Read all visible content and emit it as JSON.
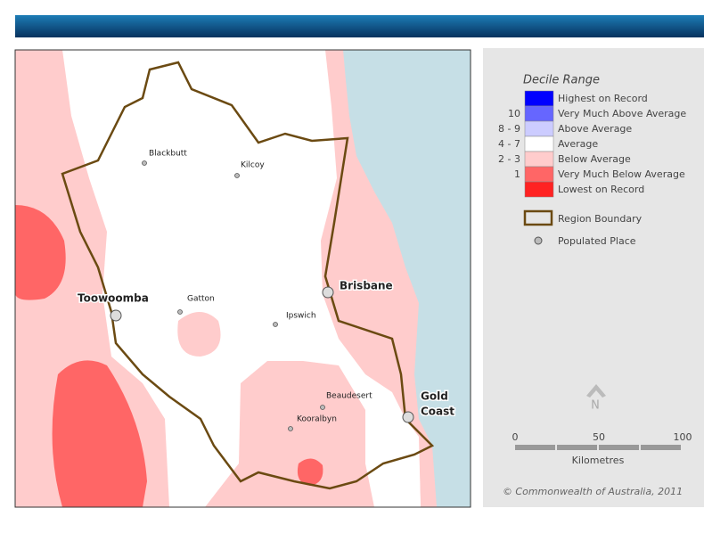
{
  "map": {
    "places": [
      {
        "name": "Blackbutt"
      },
      {
        "name": "Kilcoy"
      },
      {
        "name": "Gatton"
      },
      {
        "name": "Ipswich"
      },
      {
        "name": "Beaudesert"
      },
      {
        "name": "Kooralbyn"
      }
    ],
    "major_places": [
      {
        "lines": [
          "Toowoomba"
        ]
      },
      {
        "lines": [
          "Brisbane"
        ]
      },
      {
        "lines": [
          "Gold",
          "Coast"
        ]
      }
    ]
  },
  "legend": {
    "title": "Decile Range",
    "items": [
      {
        "label": "Highest on Record",
        "color": "#0000ff"
      },
      {
        "range": "10",
        "label": "Very Much Above Average",
        "color": "#6666ff"
      },
      {
        "range": "8 - 9",
        "label": "Above Average",
        "color": "#ccccff"
      },
      {
        "range": "4 - 7",
        "label": "Average",
        "color": "#ffffff"
      },
      {
        "range": "2 - 3",
        "label": "Below Average",
        "color": "#ffcccc"
      },
      {
        "range": "1",
        "label": "Very Much Below Average",
        "color": "#ff6666"
      },
      {
        "label": "Lowest on Record",
        "color": "#ff2222"
      }
    ],
    "boundary_label": "Region Boundary",
    "place_label": "Populated Place"
  },
  "north": "N",
  "scale": {
    "ticks": [
      0,
      50,
      100
    ],
    "unit": "Kilometres"
  },
  "copyright": "© Commonwealth of Australia, 2011"
}
